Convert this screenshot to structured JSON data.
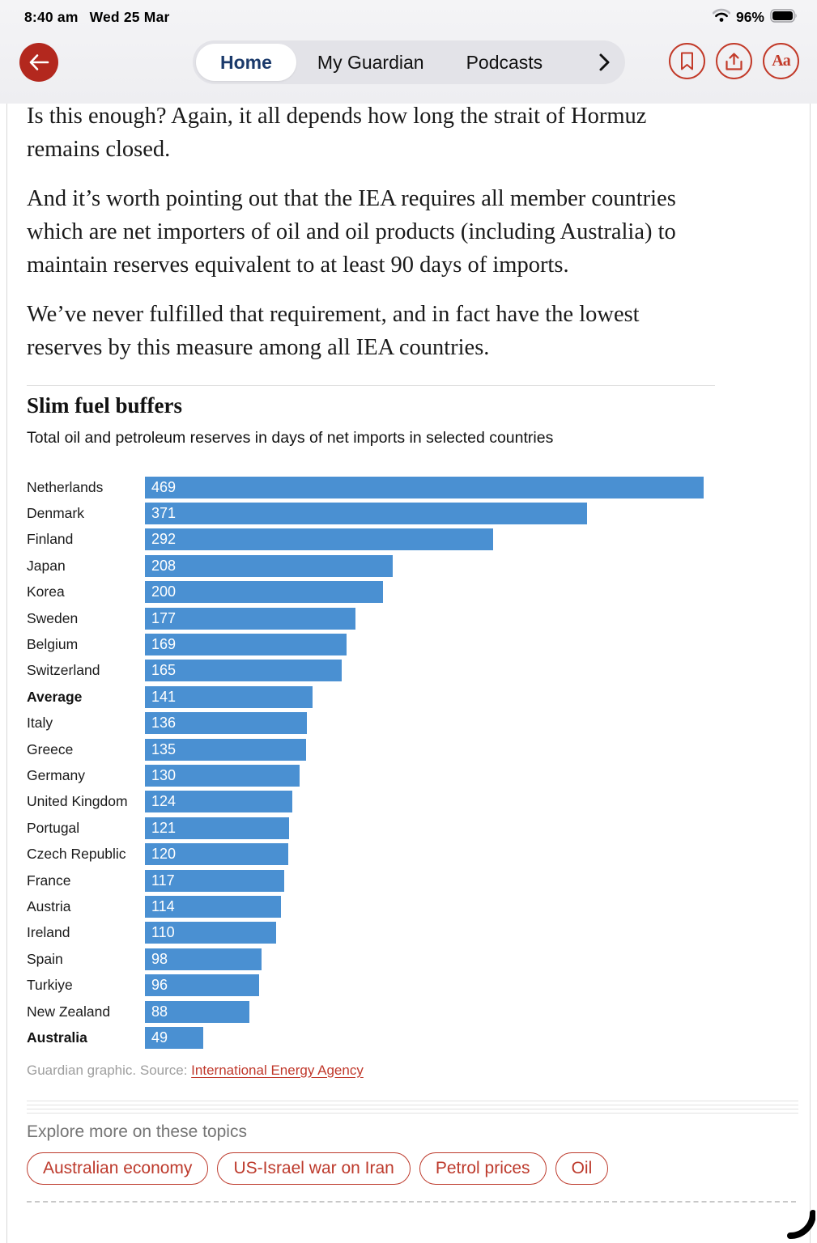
{
  "status_bar": {
    "time": "8:40 am",
    "date": "Wed 25 Mar",
    "battery_percent": "96%"
  },
  "nav": {
    "tabs": [
      {
        "label": "Home",
        "active": true
      },
      {
        "label": "My Guardian",
        "active": false
      },
      {
        "label": "Podcasts",
        "active": false
      }
    ],
    "actions": [
      "bookmark-icon",
      "share-icon",
      "text-size-icon"
    ],
    "text_size_glyph": "Aa",
    "accent_red": "#c23a29",
    "back_red": "#b3281e",
    "active_tab_color": "#1b3a6b"
  },
  "article": {
    "paragraphs": [
      "Is this enough? Again, it all depends how long the strait of Hormuz remains closed.",
      "And it’s worth pointing out that the IEA requires all member countries which are net importers of oil and oil products (including Australia) to maintain reserves equivalent to at least 90 days of imports.",
      "We’ve never fulfilled that requirement, and in fact have the lowest reserves by this measure among all IEA countries."
    ]
  },
  "chart_data": {
    "type": "bar",
    "orientation": "horizontal",
    "title": "Slim fuel buffers",
    "subtitle": "Total oil and petroleum reserves in days of net imports in selected countries",
    "categories": [
      "Netherlands",
      "Denmark",
      "Finland",
      "Japan",
      "Korea",
      "Sweden",
      "Belgium",
      "Switzerland",
      "Average",
      "Italy",
      "Greece",
      "Germany",
      "United Kingdom",
      "Portugal",
      "Czech Republic",
      "France",
      "Austria",
      "Ireland",
      "Spain",
      "Turkiye",
      "New Zealand",
      "Australia"
    ],
    "values": [
      469,
      371,
      292,
      208,
      200,
      177,
      169,
      165,
      141,
      136,
      135,
      130,
      124,
      121,
      120,
      117,
      114,
      110,
      98,
      96,
      88,
      49
    ],
    "emphasis": [
      "Average",
      "Australia"
    ],
    "xlim": [
      0,
      469
    ],
    "bar_color": "#4a90d2",
    "value_labels_inside": true,
    "value_label_color": "#ffffff",
    "grid": false,
    "legend": "none",
    "source_prefix": "Guardian graphic. Source: ",
    "source_link": "International Energy Agency"
  },
  "footer": {
    "explore_label": "Explore more on these topics",
    "topics": [
      "Australian economy",
      "US-Israel war on Iran",
      "Petrol prices",
      "Oil"
    ]
  }
}
